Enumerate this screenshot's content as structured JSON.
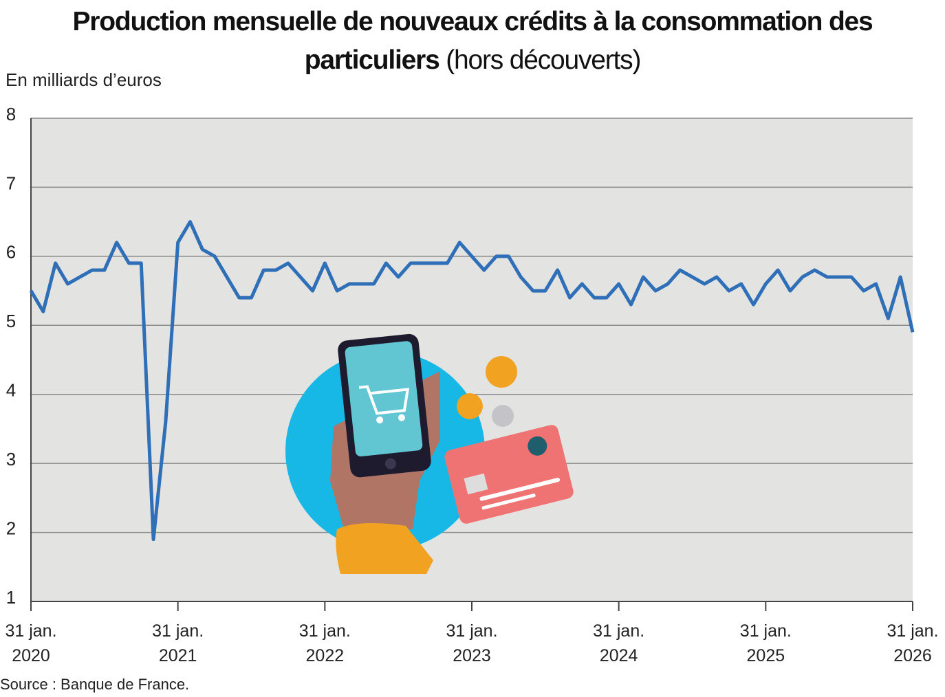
{
  "chart_data": {
    "type": "line",
    "title": "Production mensuelle de nouveaux crédits à la consommation des particuliers",
    "subtitle": "(hors découverts)",
    "y_label": "En milliards d’euros",
    "source": "Source : Banque de France.",
    "categories": [
      "31 jan. 2020",
      null,
      null,
      null,
      null,
      null,
      null,
      null,
      null,
      null,
      null,
      null,
      "31 jan. 2021",
      null,
      null,
      null,
      null,
      null,
      null,
      null,
      null,
      null,
      null,
      null,
      "31 jan. 2022",
      null,
      null,
      null,
      null,
      null,
      null,
      null,
      null,
      null,
      null,
      null,
      "31 jan. 2023",
      null,
      null,
      null,
      null,
      null,
      null,
      null,
      null,
      null,
      null,
      null,
      "31 jan. 2024",
      null,
      null,
      null,
      null,
      null,
      null,
      null,
      null,
      null,
      null,
      null,
      "31 jan. 2025",
      null,
      null,
      null,
      null,
      null,
      null,
      null,
      null,
      null,
      null,
      null,
      "31 jan. 2026"
    ],
    "series": [
      {
        "color": "#2f6fb7",
        "values": [
          5.5,
          5.2,
          5.9,
          5.6,
          5.7,
          5.8,
          5.8,
          6.2,
          5.9,
          5.9,
          1.9,
          3.6,
          6.2,
          6.5,
          6.1,
          6.0,
          5.7,
          5.4,
          5.4,
          5.8,
          5.8,
          5.9,
          5.7,
          5.5,
          5.9,
          5.5,
          5.6,
          5.6,
          5.6,
          5.9,
          5.7,
          5.9,
          5.9,
          5.9,
          5.9,
          6.2,
          6.0,
          5.8,
          6.0,
          6.0,
          5.7,
          5.5,
          5.5,
          5.8,
          5.4,
          5.6,
          5.4,
          5.4,
          5.6,
          5.3,
          5.7,
          5.5,
          5.6,
          5.8,
          5.7,
          5.6,
          5.7,
          5.5,
          5.6,
          5.3,
          5.6,
          5.8,
          5.5,
          5.7,
          5.8,
          5.7,
          5.7,
          5.7,
          5.5,
          5.6,
          5.1,
          5.7,
          4.9
        ]
      }
    ],
    "ylim": [
      1,
      8
    ],
    "yticks": [
      1,
      2,
      3,
      4,
      5,
      6,
      7,
      8
    ],
    "grid": true
  }
}
